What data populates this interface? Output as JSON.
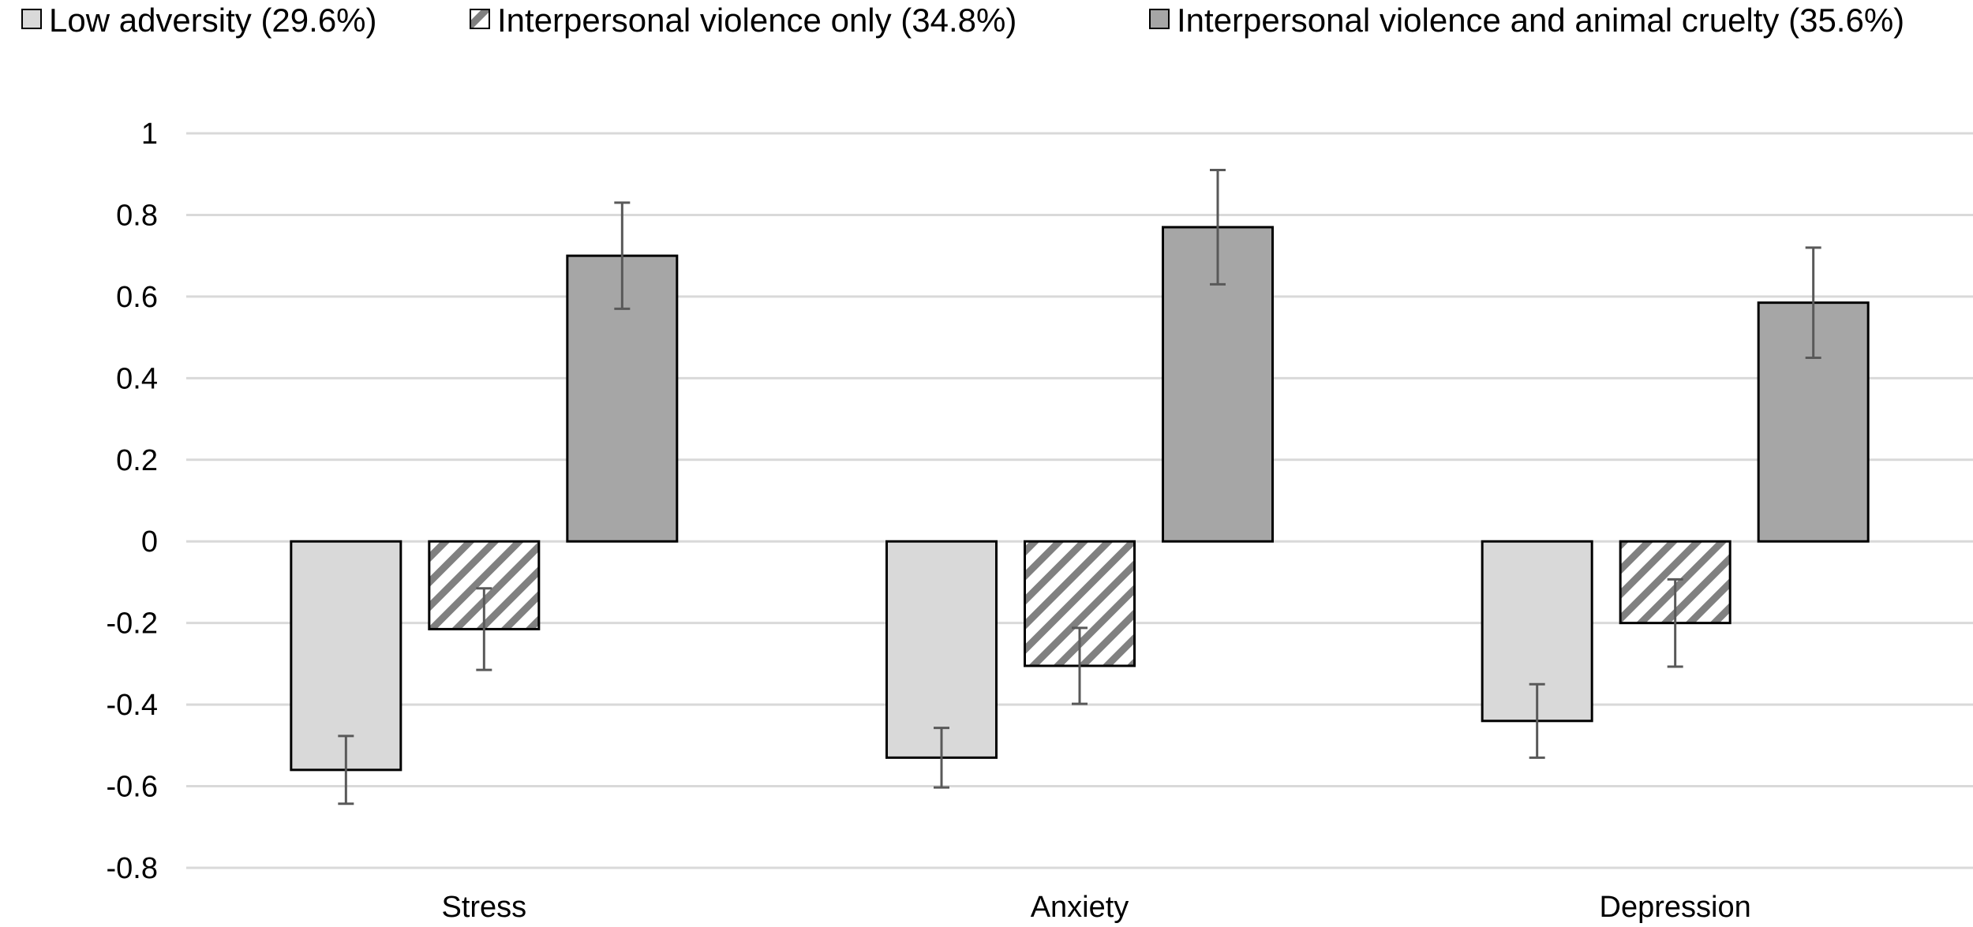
{
  "chart_data": {
    "type": "bar",
    "title": "",
    "xlabel": "",
    "ylabel": "",
    "categories": [
      "Stress",
      "Anxiety",
      "Depression"
    ],
    "series": [
      {
        "name": "Low adversity (29.6%)",
        "fill": "#d9d9d9",
        "pattern": "solid",
        "values": [
          -0.56,
          -0.53,
          -0.44
        ],
        "errors": [
          0.083,
          0.073,
          0.09
        ]
      },
      {
        "name": "Interpersonal violence only (34.8%)",
        "fill": "#808080",
        "pattern": "diagonal-hatch",
        "values": [
          -0.215,
          -0.305,
          -0.2
        ],
        "errors": [
          0.1,
          0.093,
          0.107
        ]
      },
      {
        "name": "Interpersonal violence and animal cruelty (35.6%)",
        "fill": "#a6a6a6",
        "pattern": "solid",
        "values": [
          0.7,
          0.77,
          0.585
        ],
        "errors": [
          0.13,
          0.14,
          0.135
        ]
      }
    ],
    "ylim": [
      -0.8,
      1
    ],
    "yticks": [
      1,
      0.8,
      0.6,
      0.4,
      0.2,
      0,
      -0.2,
      -0.4,
      -0.6,
      -0.8
    ],
    "ytick_labels": [
      "1",
      "0.8",
      "0.6",
      "0.4",
      "0.2",
      "0",
      "-0.2",
      "-0.4",
      "-0.6",
      "-0.8"
    ],
    "grid": true,
    "legend_position": "top"
  }
}
